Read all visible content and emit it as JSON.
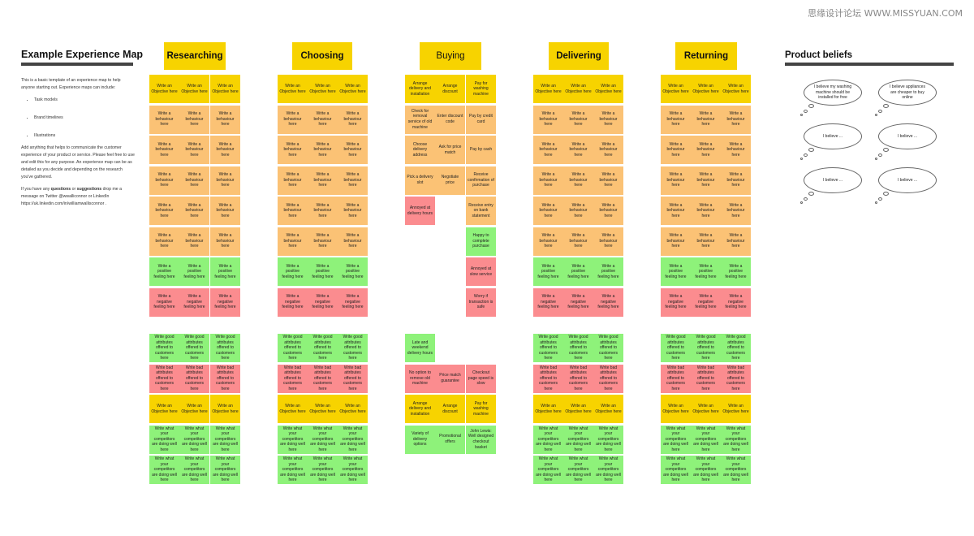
{
  "watermark": "思缘设计论坛 WWW.MISSYUAN.COM",
  "intro": {
    "title": "Example Experience Map",
    "p1": "This is a basic template of an experience map to help anyone starting out. Experience maps can include:",
    "bullets": [
      "Task models",
      "Brand timelines",
      "Illustrations"
    ],
    "p2": "Add anything that helps to communicate the customer experience of your product or service. Please feel free to use and edit this for any purpose. An experience map can be as detailed as you decide and depending on the research you've gathered.",
    "p3_a": "If you have any ",
    "p3_q": "questions",
    "p3_b": " or ",
    "p3_s": "suggestions",
    "p3_c": " drop me a message on Twitter @wwalliconnor or LinkedIn https://uk.linkedin.com/in/williamwallisconnor ."
  },
  "stages": [
    {
      "label": "Researching"
    },
    {
      "label": "Choosing"
    },
    {
      "label": "Buying"
    },
    {
      "label": "Delivering"
    },
    {
      "label": "Returning"
    }
  ],
  "template_top": [
    {
      "c": "y",
      "t": "Write an Objective here"
    },
    {
      "c": "o",
      "t": "Write a behaviour here"
    },
    {
      "c": "o",
      "t": "Write a behaviour here"
    },
    {
      "c": "o",
      "t": "Write a behaviour here"
    },
    {
      "c": "o",
      "t": "Write a behaviour here"
    },
    {
      "c": "o",
      "t": "Write a behaviour here"
    },
    {
      "c": "g",
      "t": "Write a positive feeling here"
    },
    {
      "c": "r",
      "t": "Write a negative feeling here"
    }
  ],
  "template_bottom": [
    {
      "c": "g",
      "t": "Write good attributes offered to customers here"
    },
    {
      "c": "r",
      "t": "Write bad attributes offered to customers here"
    },
    {
      "c": "y",
      "t": "Write an Objective here"
    },
    {
      "c": "g",
      "t": "Write what your competitors are doing well here"
    },
    {
      "c": "g",
      "t": "Write what your competitors are doing well here"
    }
  ],
  "buying": {
    "top": [
      [
        {
          "c": "y",
          "t": "Arrange delivery and installation"
        },
        {
          "c": "o",
          "t": "Check for removal service of old machine"
        },
        {
          "c": "o",
          "t": "Choose delivery address"
        },
        {
          "c": "o",
          "t": "Pick a delivery slot"
        },
        {
          "c": "r",
          "t": "Annoyed at delivery hours"
        }
      ],
      [
        {
          "c": "y",
          "t": "Arrange discount"
        },
        {
          "c": "o",
          "t": "Enter discount code"
        },
        {
          "c": "o",
          "t": "Ask for price match"
        },
        {
          "c": "o",
          "t": "Negotiate price"
        }
      ],
      [
        {
          "c": "y",
          "t": "Pay for washing machine"
        },
        {
          "c": "o",
          "t": "Pay by credit card"
        },
        {
          "c": "o",
          "t": "Pay by cash"
        },
        {
          "c": "o",
          "t": "Receive confirmation of purchase"
        },
        {
          "c": "o",
          "t": "Receive entry on bank statement"
        },
        {
          "c": "g",
          "t": "Happy to complete purchase"
        },
        {
          "c": "r",
          "t": "Annoyed at slow service"
        },
        {
          "c": "r",
          "t": "Worry if transaction is safe"
        }
      ]
    ],
    "bottom": [
      [
        {
          "c": "g",
          "t": "Late and weekend delivery hours"
        },
        {
          "c": "r",
          "t": "No option to remove old machine"
        },
        {
          "c": "y",
          "t": "Arrange delivery and installation"
        },
        {
          "c": "g",
          "t": "Variety of delivery options"
        }
      ],
      [
        {
          "c": "blank",
          "t": ""
        },
        {
          "c": "r",
          "t": "Price match guarantee"
        },
        {
          "c": "y",
          "t": "Arrange discount"
        },
        {
          "c": "g",
          "t": "Promotional offers"
        }
      ],
      [
        {
          "c": "blank",
          "t": ""
        },
        {
          "c": "r",
          "t": "Checkout page speed is slow"
        },
        {
          "c": "y",
          "t": "Pay for washing machine"
        },
        {
          "c": "g",
          "t": "John Lewis: Well designed checkout basket"
        }
      ]
    ]
  },
  "beliefs": {
    "title": "Product beliefs",
    "clouds": [
      "I believe my washing machine should be installed for free",
      "I believe appliances are cheaper to buy online",
      "I believe ...",
      "I believe ...",
      "I believe ...",
      "I believe ..."
    ]
  }
}
